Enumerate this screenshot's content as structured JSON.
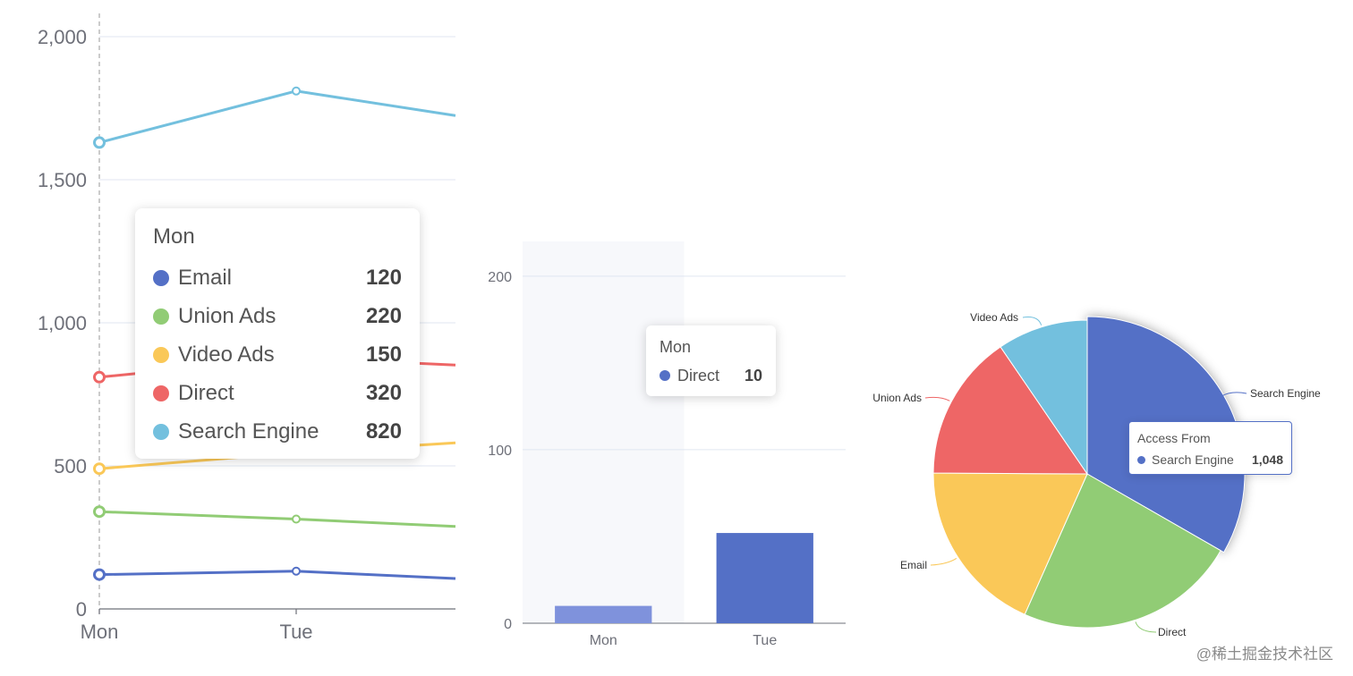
{
  "colors": {
    "email": "#5470c6",
    "union_ads": "#91cc75",
    "video_ads": "#fac858",
    "direct": "#ee6666",
    "search_engine": "#73c0de",
    "axis_text": "#6e7079",
    "grid": "#e0e6f1"
  },
  "chart_data": [
    {
      "type": "line",
      "x": [
        "Mon",
        "Tue"
      ],
      "ylim": [
        0,
        2000
      ],
      "yticks": [
        "0",
        "500",
        "1,000",
        "1,500",
        "2,000"
      ],
      "grid": true,
      "series": [
        {
          "name": "Email",
          "values": [
            120,
            132
          ]
        },
        {
          "name": "Union Ads",
          "values": [
            220,
            182
          ]
        },
        {
          "name": "Video Ads",
          "values": [
            150,
            232
          ]
        },
        {
          "name": "Direct",
          "values": [
            320,
            332
          ]
        },
        {
          "name": "Search Engine",
          "values": [
            820,
            932
          ]
        }
      ],
      "stacked": true,
      "tooltip": {
        "title": "Mon",
        "rows": [
          {
            "name": "Email",
            "value": "120"
          },
          {
            "name": "Union Ads",
            "value": "220"
          },
          {
            "name": "Video Ads",
            "value": "150"
          },
          {
            "name": "Direct",
            "value": "320"
          },
          {
            "name": "Search Engine",
            "value": "820"
          }
        ]
      }
    },
    {
      "type": "bar",
      "categories": [
        "Mon",
        "Tue"
      ],
      "ylim": [
        0,
        220
      ],
      "yticks": [
        "0",
        "100",
        "200"
      ],
      "grid": true,
      "series": [
        {
          "name": "Direct",
          "values": [
            10,
            52
          ]
        }
      ],
      "tooltip": {
        "title": "Mon",
        "rows": [
          {
            "name": "Direct",
            "value": "10"
          }
        ]
      }
    },
    {
      "type": "pie",
      "labels": [
        "Search Engine",
        "Direct",
        "Email",
        "Union Ads",
        "Video Ads"
      ],
      "values": [
        1048,
        735,
        580,
        484,
        300
      ],
      "tooltip": {
        "title": "Access From",
        "rows": [
          {
            "name": "Search Engine",
            "value": "1,048"
          }
        ]
      }
    }
  ],
  "watermark": "@稀土掘金技术社区"
}
